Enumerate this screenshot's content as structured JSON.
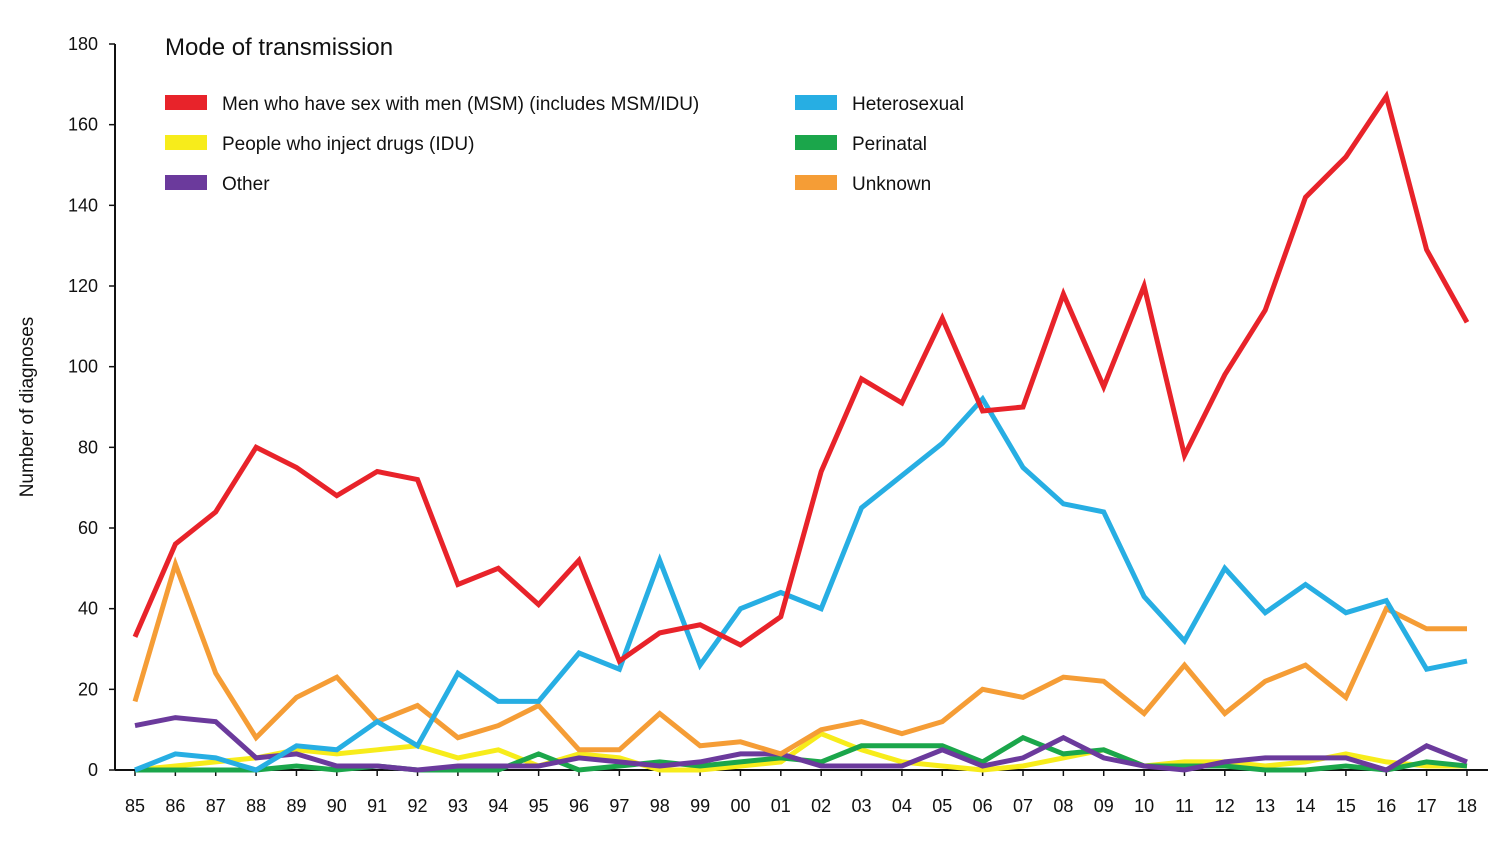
{
  "chart_data": {
    "type": "line",
    "legend_title": "Mode of transmission",
    "ylabel": "Number of diagnoses",
    "xlabel": "",
    "ylim": [
      0,
      180
    ],
    "yticks": [
      0,
      20,
      40,
      60,
      80,
      100,
      120,
      140,
      160,
      180
    ],
    "grid": false,
    "legend_position": "top-left",
    "categories": [
      "85",
      "86",
      "87",
      "88",
      "89",
      "90",
      "91",
      "92",
      "93",
      "94",
      "95",
      "96",
      "97",
      "98",
      "99",
      "00",
      "01",
      "02",
      "03",
      "04",
      "05",
      "06",
      "07",
      "08",
      "09",
      "10",
      "11",
      "12",
      "13",
      "14",
      "15",
      "16",
      "17",
      "18"
    ],
    "series": [
      {
        "name": "Men who have sex with men (MSM) (includes MSM/IDU)",
        "color": "#e8232a",
        "values": [
          33,
          56,
          64,
          80,
          75,
          68,
          74,
          72,
          46,
          50,
          41,
          52,
          27,
          34,
          36,
          31,
          38,
          74,
          97,
          91,
          112,
          89,
          90,
          118,
          95,
          120,
          78,
          98,
          114,
          142,
          152,
          167,
          129,
          111
        ]
      },
      {
        "name": "Heterosexual",
        "color": "#27aee3",
        "values": [
          0,
          4,
          3,
          0,
          6,
          5,
          12,
          6,
          24,
          17,
          17,
          29,
          25,
          52,
          26,
          40,
          44,
          40,
          65,
          73,
          81,
          92,
          75,
          66,
          64,
          43,
          32,
          50,
          39,
          46,
          39,
          42,
          25,
          27
        ]
      },
      {
        "name": "People who inject drugs (IDU)",
        "color": "#f7ec1b",
        "values": [
          0,
          1,
          2,
          3,
          5,
          4,
          5,
          6,
          3,
          5,
          1,
          4,
          3,
          0,
          0,
          1,
          2,
          9,
          5,
          2,
          1,
          0,
          1,
          3,
          5,
          1,
          2,
          2,
          1,
          2,
          4,
          2,
          1,
          1
        ]
      },
      {
        "name": "Perinatal",
        "color": "#1ba64b",
        "values": [
          0,
          0,
          0,
          0,
          1,
          0,
          1,
          0,
          0,
          0,
          4,
          0,
          1,
          2,
          1,
          2,
          3,
          2,
          6,
          6,
          6,
          2,
          8,
          4,
          5,
          1,
          1,
          1,
          0,
          0,
          1,
          0,
          2,
          1
        ]
      },
      {
        "name": "Other",
        "color": "#6b3a9c",
        "values": [
          11,
          13,
          12,
          3,
          4,
          1,
          1,
          0,
          1,
          1,
          1,
          3,
          2,
          1,
          2,
          4,
          4,
          1,
          1,
          1,
          5,
          1,
          3,
          8,
          3,
          1,
          0,
          2,
          3,
          3,
          3,
          0,
          6,
          2
        ]
      },
      {
        "name": "Unknown",
        "color": "#f59d36",
        "values": [
          17,
          51,
          24,
          8,
          18,
          23,
          12,
          16,
          8,
          11,
          16,
          5,
          5,
          14,
          6,
          7,
          4,
          10,
          12,
          9,
          12,
          20,
          18,
          23,
          22,
          14,
          26,
          14,
          22,
          26,
          18,
          40,
          35,
          35
        ]
      }
    ],
    "legend_order": [
      0,
      1,
      2,
      3,
      4,
      5
    ]
  }
}
